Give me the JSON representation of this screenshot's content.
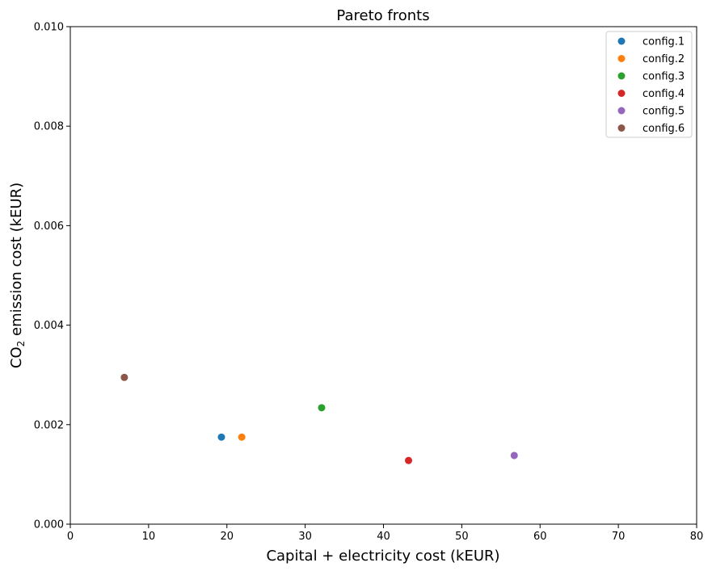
{
  "chart_data": {
    "type": "scatter",
    "title": "Pareto fronts",
    "xlabel": "Capital + electricity cost (kEUR)",
    "ylabel": {
      "prefix": "CO",
      "subscript": "2",
      "suffix": " emission cost (kEUR)"
    },
    "xlim": [
      0,
      80
    ],
    "ylim": [
      0,
      0.01
    ],
    "xticks": [
      "0",
      "10",
      "20",
      "30",
      "40",
      "50",
      "60",
      "70",
      "80"
    ],
    "yticks": [
      "0.000",
      "0.002",
      "0.004",
      "0.006",
      "0.008",
      "0.010"
    ],
    "grid": false,
    "legend_position": "top-right",
    "series": [
      {
        "name": "config.1",
        "color": "#1f77b4",
        "x": [
          19.3
        ],
        "y": [
          0.00175
        ]
      },
      {
        "name": "config.2",
        "color": "#ff7f0e",
        "x": [
          21.9
        ],
        "y": [
          0.00175
        ]
      },
      {
        "name": "config.3",
        "color": "#2ca02c",
        "x": [
          32.1
        ],
        "y": [
          0.00234
        ]
      },
      {
        "name": "config.4",
        "color": "#d62728",
        "x": [
          43.2
        ],
        "y": [
          0.00128
        ]
      },
      {
        "name": "config.5",
        "color": "#9467bd",
        "x": [
          56.7
        ],
        "y": [
          0.00138
        ]
      },
      {
        "name": "config.6",
        "color": "#8c564b",
        "x": [
          6.9
        ],
        "y": [
          0.00295
        ]
      }
    ]
  }
}
